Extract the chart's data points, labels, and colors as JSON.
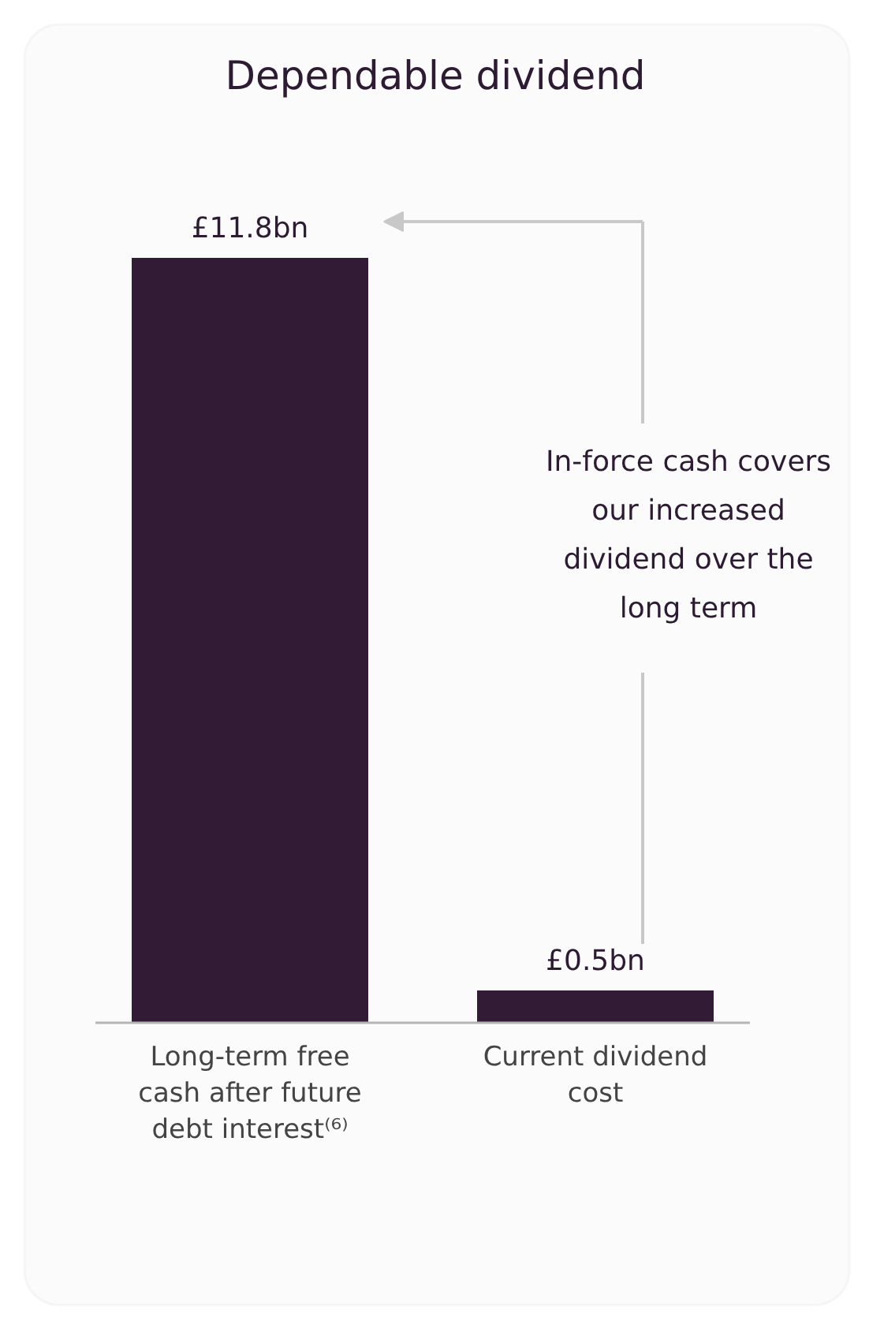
{
  "chart_data": {
    "type": "bar",
    "title": "Dependable dividend",
    "categories": [
      "Long-term free cash after future debt interest⁽⁶⁾",
      "Current dividend cost"
    ],
    "values": [
      11.8,
      0.5
    ],
    "color": "#321c35",
    "value_labels": [
      "£11.8bn",
      "£0.5bn"
    ],
    "annotations": [
      "In-force cash covers our increased dividend over the long term"
    ],
    "grid": false
  }
}
